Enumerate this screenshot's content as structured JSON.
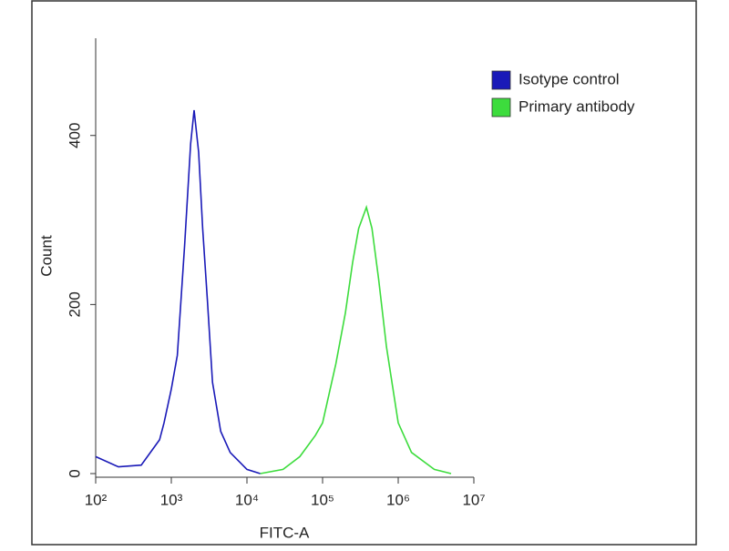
{
  "chart_data": {
    "type": "line",
    "xlabel": "FITC-A",
    "ylabel": "Count",
    "xscale": "log",
    "xlim": [
      100,
      10000000
    ],
    "ylim": [
      0,
      515
    ],
    "xticks": [
      {
        "value": 100,
        "label": "10²"
      },
      {
        "value": 1000,
        "label": "10³"
      },
      {
        "value": 10000,
        "label": "10⁴"
      },
      {
        "value": 100000,
        "label": "10⁵"
      },
      {
        "value": 1000000,
        "label": "10⁶"
      },
      {
        "value": 10000000,
        "label": "10⁷"
      }
    ],
    "yticks": [
      0,
      200,
      400
    ],
    "legend": "top-right",
    "series": [
      {
        "name": "Isotype control",
        "color": "#1a1ab8",
        "x": [
          100,
          200,
          400,
          500,
          700,
          800,
          1000,
          1200,
          1500,
          1800,
          2000,
          2300,
          2600,
          3000,
          3500,
          4500,
          6000,
          10000,
          15000
        ],
        "values": [
          20,
          8,
          10,
          22,
          40,
          60,
          100,
          140,
          270,
          390,
          430,
          380,
          290,
          205,
          108,
          50,
          25,
          5,
          0
        ]
      },
      {
        "name": "Primary antibody",
        "color": "#3ddc3d",
        "x": [
          15000,
          30000,
          50000,
          80000,
          100000,
          150000,
          200000,
          250000,
          300000,
          380000,
          450000,
          550000,
          700000,
          1000000,
          1500000,
          3000000,
          5000000
        ],
        "values": [
          0,
          5,
          20,
          45,
          60,
          130,
          190,
          250,
          290,
          315,
          290,
          230,
          150,
          60,
          25,
          5,
          0
        ]
      }
    ]
  }
}
